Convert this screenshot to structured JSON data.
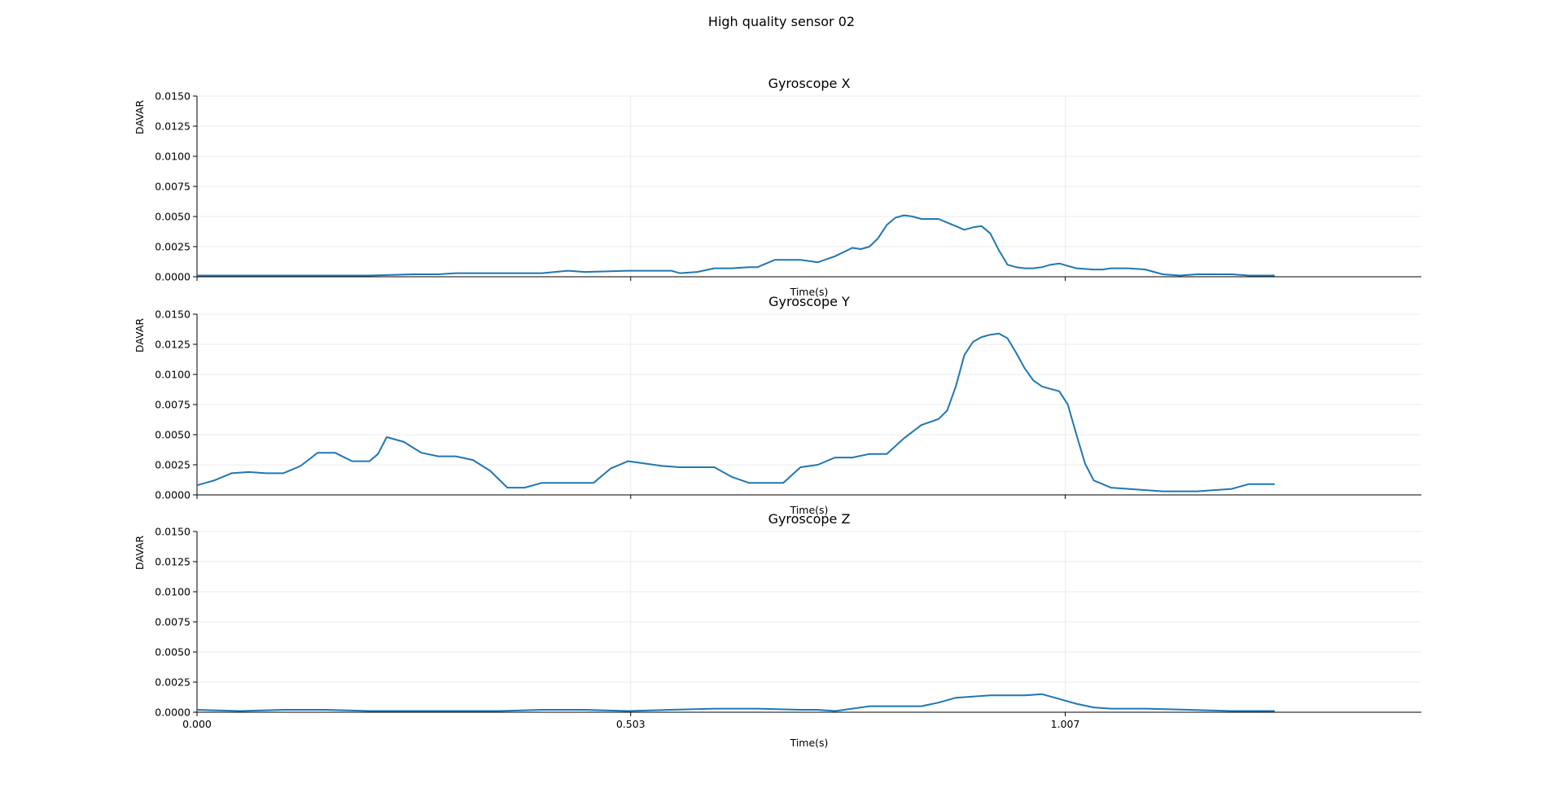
{
  "suptitle": "High quality sensor 02",
  "chart_data": [
    {
      "type": "line",
      "title": "Gyroscope X",
      "xlabel": "Time(s)",
      "ylabel": "DAVAR",
      "xlim": [
        0,
        1.42
      ],
      "ylim": [
        0,
        0.015
      ],
      "xticks": [
        0,
        0.503,
        1.007
      ],
      "xtick_labels": [
        "",
        "",
        ""
      ],
      "yticks": [
        0,
        0.0025,
        0.005,
        0.0075,
        0.01,
        0.0125,
        0.015
      ],
      "ytick_labels": [
        "0.0000",
        "0.0025",
        "0.0050",
        "0.0075",
        "0.0100",
        "0.0125",
        "0.0150"
      ],
      "grid": true,
      "color": "#1f77b4",
      "series": [
        {
          "x": [
            0,
            0.05,
            0.1,
            0.15,
            0.2,
            0.25,
            0.28,
            0.3,
            0.35,
            0.37,
            0.4,
            0.43,
            0.45,
            0.5,
            0.53,
            0.55,
            0.56,
            0.58,
            0.6,
            0.62,
            0.64,
            0.65,
            0.67,
            0.69,
            0.7,
            0.72,
            0.74,
            0.76,
            0.77,
            0.78,
            0.79,
            0.8,
            0.81,
            0.82,
            0.83,
            0.84,
            0.85,
            0.86,
            0.87,
            0.88,
            0.89,
            0.9,
            0.91,
            0.92,
            0.93,
            0.935,
            0.94,
            0.95,
            0.96,
            0.97,
            0.98,
            0.99,
            1.0,
            1.02,
            1.04,
            1.05,
            1.06,
            1.08,
            1.1,
            1.12,
            1.14,
            1.16,
            1.17,
            1.18,
            1.2,
            1.22,
            1.25
          ],
          "y": [
            0.0001,
            0.0001,
            0.0001,
            0.0001,
            0.0001,
            0.0002,
            0.0002,
            0.0003,
            0.0003,
            0.0003,
            0.0003,
            0.0005,
            0.0004,
            0.0005,
            0.0005,
            0.0005,
            0.0003,
            0.0004,
            0.0007,
            0.0007,
            0.0008,
            0.0008,
            0.0014,
            0.0014,
            0.0014,
            0.0012,
            0.0017,
            0.0024,
            0.0023,
            0.0025,
            0.0032,
            0.0043,
            0.0049,
            0.0051,
            0.005,
            0.0048,
            0.0048,
            0.0048,
            0.0045,
            0.0042,
            0.0039,
            0.0041,
            0.0042,
            0.0036,
            0.0022,
            0.0016,
            0.001,
            0.0008,
            0.0007,
            0.0007,
            0.0008,
            0.001,
            0.0011,
            0.0007,
            0.0006,
            0.0006,
            0.0007,
            0.0007,
            0.0006,
            0.0002,
            0.0001,
            0.0002,
            0.0002,
            0.0002,
            0.0002,
            0.0001,
            0.0001
          ]
        }
      ]
    },
    {
      "type": "line",
      "title": "Gyroscope Y",
      "xlabel": "Time(s)",
      "ylabel": "DAVAR",
      "xlim": [
        0,
        1.42
      ],
      "ylim": [
        0,
        0.015
      ],
      "xticks": [
        0,
        0.503,
        1.007
      ],
      "xtick_labels": [
        "",
        "",
        ""
      ],
      "yticks": [
        0,
        0.0025,
        0.005,
        0.0075,
        0.01,
        0.0125,
        0.015
      ],
      "ytick_labels": [
        "0.0000",
        "0.0025",
        "0.0050",
        "0.0075",
        "0.0100",
        "0.0125",
        "0.0150"
      ],
      "grid": true,
      "color": "#1f77b4",
      "series": [
        {
          "x": [
            0,
            0.02,
            0.04,
            0.06,
            0.08,
            0.1,
            0.12,
            0.14,
            0.16,
            0.18,
            0.2,
            0.21,
            0.22,
            0.24,
            0.26,
            0.28,
            0.3,
            0.32,
            0.34,
            0.36,
            0.38,
            0.4,
            0.42,
            0.44,
            0.46,
            0.48,
            0.5,
            0.52,
            0.54,
            0.56,
            0.58,
            0.6,
            0.62,
            0.64,
            0.66,
            0.68,
            0.7,
            0.72,
            0.74,
            0.76,
            0.78,
            0.8,
            0.82,
            0.84,
            0.86,
            0.87,
            0.88,
            0.89,
            0.9,
            0.91,
            0.92,
            0.93,
            0.94,
            0.95,
            0.96,
            0.97,
            0.98,
            0.99,
            1.0,
            1.01,
            1.02,
            1.03,
            1.04,
            1.06,
            1.08,
            1.1,
            1.12,
            1.14,
            1.16,
            1.18,
            1.2,
            1.22,
            1.25
          ],
          "y": [
            0.0008,
            0.0012,
            0.0018,
            0.0019,
            0.0018,
            0.0018,
            0.0024,
            0.0035,
            0.0035,
            0.0028,
            0.0028,
            0.0034,
            0.0048,
            0.0044,
            0.0035,
            0.0032,
            0.0032,
            0.0029,
            0.002,
            0.0006,
            0.0006,
            0.001,
            0.001,
            0.001,
            0.001,
            0.0022,
            0.0028,
            0.0026,
            0.0024,
            0.0023,
            0.0023,
            0.0023,
            0.0015,
            0.001,
            0.001,
            0.001,
            0.0023,
            0.0025,
            0.0031,
            0.0031,
            0.0034,
            0.0034,
            0.0047,
            0.0058,
            0.0063,
            0.007,
            0.009,
            0.0116,
            0.0127,
            0.0131,
            0.0133,
            0.0134,
            0.013,
            0.0118,
            0.0105,
            0.0095,
            0.009,
            0.0088,
            0.0086,
            0.0075,
            0.005,
            0.0026,
            0.0012,
            0.0006,
            0.0005,
            0.0004,
            0.0003,
            0.0003,
            0.0003,
            0.0004,
            0.0005,
            0.0009,
            0.0009
          ]
        }
      ]
    },
    {
      "type": "line",
      "title": "Gyroscope Z",
      "xlabel": "Time(s)",
      "ylabel": "DAVAR",
      "xlim": [
        0,
        1.42
      ],
      "ylim": [
        0,
        0.015
      ],
      "xticks": [
        0,
        0.503,
        1.007
      ],
      "xtick_labels": [
        "0.000",
        "0.503",
        "1.007"
      ],
      "yticks": [
        0,
        0.0025,
        0.005,
        0.0075,
        0.01,
        0.0125,
        0.015
      ],
      "ytick_labels": [
        "0.0000",
        "0.0025",
        "0.0050",
        "0.0075",
        "0.0100",
        "0.0125",
        "0.0150"
      ],
      "grid": true,
      "color": "#1f77b4",
      "series": [
        {
          "x": [
            0,
            0.05,
            0.1,
            0.15,
            0.2,
            0.25,
            0.3,
            0.35,
            0.4,
            0.45,
            0.5,
            0.55,
            0.6,
            0.65,
            0.7,
            0.72,
            0.74,
            0.76,
            0.78,
            0.8,
            0.82,
            0.84,
            0.86,
            0.88,
            0.9,
            0.92,
            0.94,
            0.96,
            0.98,
            1.0,
            1.02,
            1.04,
            1.06,
            1.1,
            1.15,
            1.2,
            1.25
          ],
          "y": [
            0.0002,
            0.0001,
            0.0002,
            0.0002,
            0.0001,
            0.0001,
            0.0001,
            0.0001,
            0.0002,
            0.0002,
            0.0001,
            0.0002,
            0.0003,
            0.0003,
            0.0002,
            0.0002,
            0.0001,
            0.0003,
            0.0005,
            0.0005,
            0.0005,
            0.0005,
            0.0008,
            0.0012,
            0.0013,
            0.0014,
            0.0014,
            0.0014,
            0.0015,
            0.0011,
            0.0007,
            0.0004,
            0.0003,
            0.0003,
            0.0002,
            0.0001,
            0.0001
          ]
        }
      ]
    }
  ]
}
